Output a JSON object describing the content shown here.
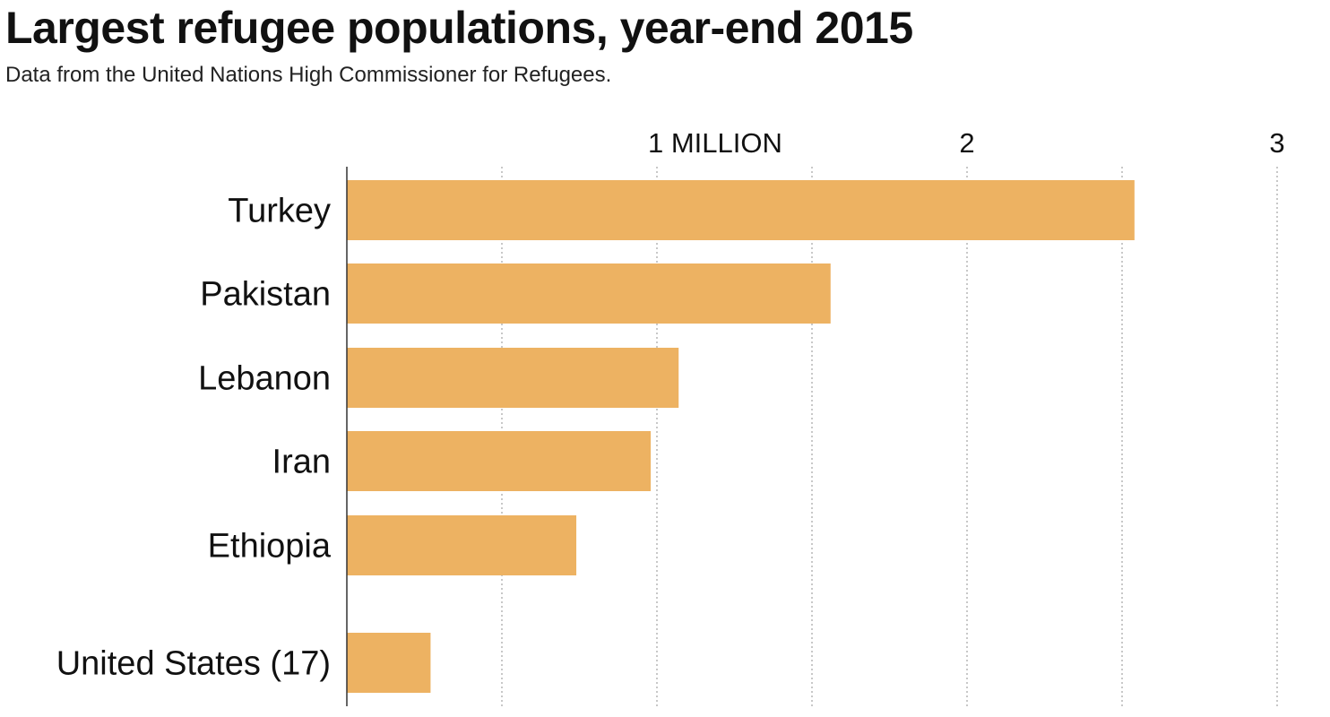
{
  "header": {
    "title": "Largest refugee populations, year-end 2015",
    "subtitle": "Data from the United Nations High Commissioner for Refugees."
  },
  "colors": {
    "bar": "#EDB262",
    "grid": "#b5b5b5",
    "axis": "#333333"
  },
  "chart_data": {
    "type": "bar",
    "orientation": "horizontal",
    "title": "Largest refugee populations, year-end 2015",
    "subtitle": "Data from the United Nations High Commissioner for Refugees.",
    "categories": [
      "Turkey",
      "Pakistan",
      "Lebanon",
      "Iran",
      "Ethiopia",
      "United States (17)"
    ],
    "values": [
      2.54,
      1.56,
      1.07,
      0.98,
      0.74,
      0.27
    ],
    "unit": "million refugees",
    "xlim": [
      0,
      3
    ],
    "grid_step": 0.5,
    "ticks": [
      {
        "value": 1,
        "label": "1 MILLION"
      },
      {
        "value": 2,
        "label": "2"
      },
      {
        "value": 3,
        "label": "3"
      }
    ],
    "grid": true,
    "legend": "none"
  }
}
